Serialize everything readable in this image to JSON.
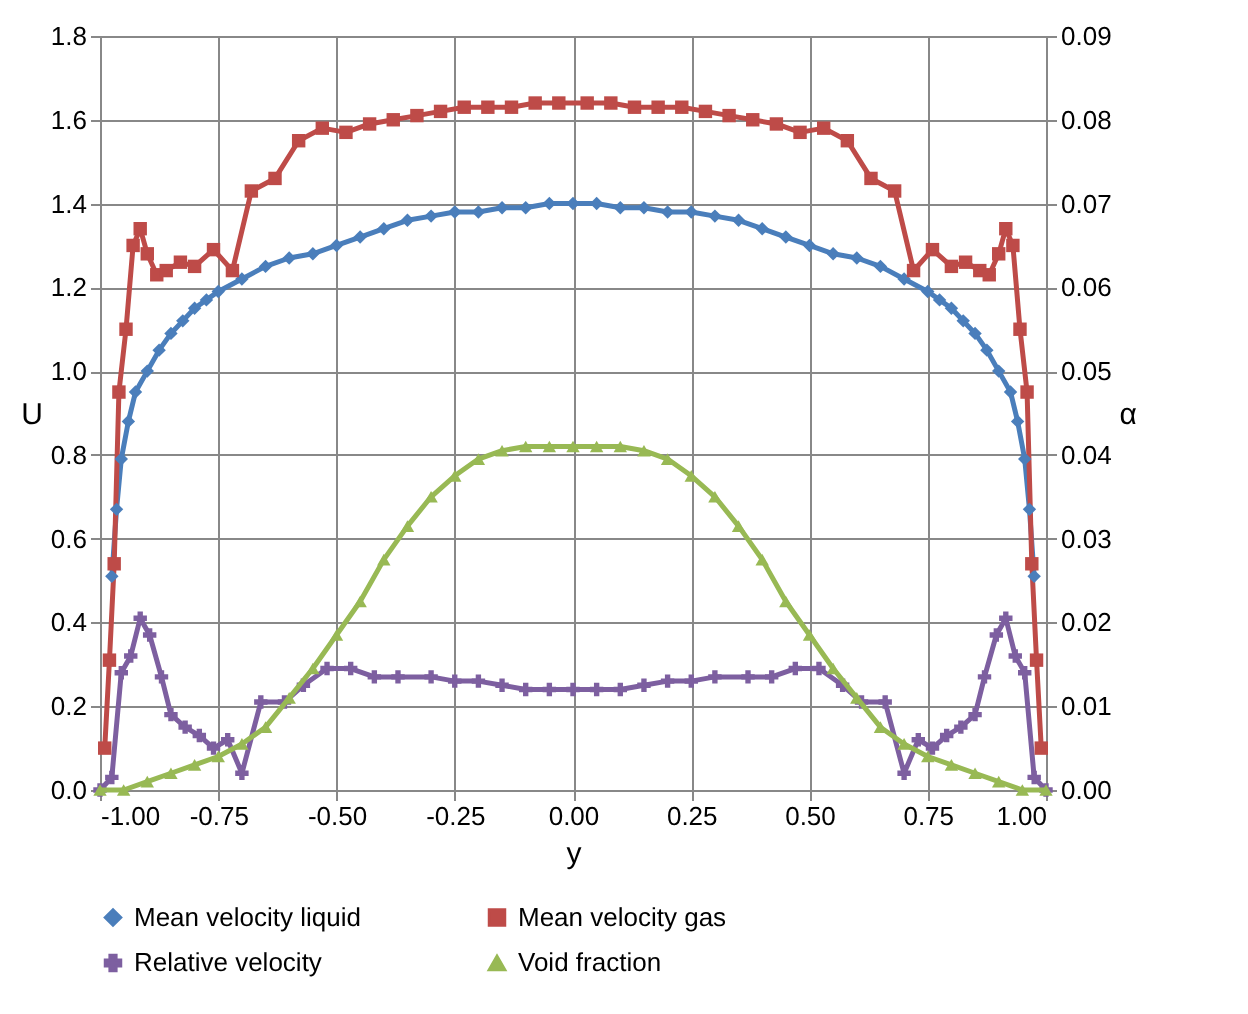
{
  "chart_data": {
    "type": "line",
    "xlabel": "y",
    "ylabel": "U",
    "y2label": "α",
    "xlim": [
      -1,
      1
    ],
    "ylim": [
      0,
      1.8
    ],
    "y2lim": [
      0,
      0.09
    ],
    "xticks": [
      {
        "value": -1,
        "label": "-1.00"
      },
      {
        "value": -0.75,
        "label": "-0.75"
      },
      {
        "value": -0.5,
        "label": "-0.50"
      },
      {
        "value": -0.25,
        "label": "-0.25"
      },
      {
        "value": 0,
        "label": "0.00"
      },
      {
        "value": 0.25,
        "label": "0.25"
      },
      {
        "value": 0.5,
        "label": "0.50"
      },
      {
        "value": 0.75,
        "label": "0.75"
      },
      {
        "value": 1,
        "label": "1.00"
      }
    ],
    "yticks": [
      {
        "value": 0,
        "label": "0.0"
      },
      {
        "value": 0.2,
        "label": "0.2"
      },
      {
        "value": 0.4,
        "label": "0.4"
      },
      {
        "value": 0.6,
        "label": "0.6"
      },
      {
        "value": 0.8,
        "label": "0.8"
      },
      {
        "value": 1,
        "label": "1.0"
      },
      {
        "value": 1.2,
        "label": "1.2"
      },
      {
        "value": 1.4,
        "label": "1.4"
      },
      {
        "value": 1.6,
        "label": "1.6"
      },
      {
        "value": 1.8,
        "label": "1.8"
      }
    ],
    "y2ticks": [
      {
        "value": 0,
        "label": "0.00"
      },
      {
        "value": 0.01,
        "label": "0.01"
      },
      {
        "value": 0.02,
        "label": "0.02"
      },
      {
        "value": 0.03,
        "label": "0.03"
      },
      {
        "value": 0.04,
        "label": "0.04"
      },
      {
        "value": 0.05,
        "label": "0.05"
      },
      {
        "value": 0.06,
        "label": "0.06"
      },
      {
        "value": 0.07,
        "label": "0.07"
      },
      {
        "value": 0.08,
        "label": "0.08"
      },
      {
        "value": 0.09,
        "label": "0.09"
      }
    ],
    "grid": true,
    "legend": "bottom",
    "series": [
      {
        "name": "Mean velocity liquid",
        "color": "#4a7ebb",
        "marker": "diamond",
        "x": [
          -0.975,
          -0.965,
          -0.955,
          -0.94,
          -0.925,
          -0.9,
          -0.875,
          -0.85,
          -0.825,
          -0.8,
          -0.775,
          -0.75,
          -0.7,
          -0.65,
          -0.6,
          -0.55,
          -0.5,
          -0.45,
          -0.4,
          -0.35,
          -0.3,
          -0.25,
          -0.2,
          -0.15,
          -0.1,
          -0.05,
          0,
          0.05,
          0.1,
          0.15,
          0.2,
          0.25,
          0.3,
          0.35,
          0.4,
          0.45,
          0.5,
          0.55,
          0.6,
          0.65,
          0.7,
          0.75,
          0.775,
          0.8,
          0.825,
          0.85,
          0.875,
          0.9,
          0.925,
          0.94,
          0.955,
          0.965,
          0.975
        ],
        "values": [
          0.51,
          0.67,
          0.79,
          0.88,
          0.95,
          1.0,
          1.05,
          1.09,
          1.12,
          1.15,
          1.17,
          1.19,
          1.22,
          1.25,
          1.27,
          1.28,
          1.3,
          1.32,
          1.34,
          1.36,
          1.37,
          1.38,
          1.38,
          1.39,
          1.39,
          1.4,
          1.4,
          1.4,
          1.39,
          1.39,
          1.38,
          1.38,
          1.37,
          1.36,
          1.34,
          1.32,
          1.3,
          1.28,
          1.27,
          1.25,
          1.22,
          1.19,
          1.17,
          1.15,
          1.12,
          1.09,
          1.05,
          1.0,
          0.95,
          0.88,
          0.79,
          0.67,
          0.51
        ]
      },
      {
        "name": "Mean velocity gas",
        "color": "#be4b48",
        "marker": "square",
        "x": [
          -0.99,
          -0.98,
          -0.97,
          -0.96,
          -0.945,
          -0.93,
          -0.915,
          -0.9,
          -0.88,
          -0.86,
          -0.83,
          -0.8,
          -0.76,
          -0.72,
          -0.68,
          -0.63,
          -0.58,
          -0.53,
          -0.48,
          -0.43,
          -0.38,
          -0.33,
          -0.28,
          -0.23,
          -0.18,
          -0.13,
          -0.08,
          -0.03,
          0.03,
          0.08,
          0.13,
          0.18,
          0.23,
          0.28,
          0.33,
          0.38,
          0.43,
          0.48,
          0.53,
          0.58,
          0.63,
          0.68,
          0.72,
          0.76,
          0.8,
          0.83,
          0.86,
          0.88,
          0.9,
          0.915,
          0.93,
          0.945,
          0.96,
          0.97,
          0.98,
          0.99
        ],
        "values": [
          0.1,
          0.31,
          0.54,
          0.95,
          1.1,
          1.3,
          1.34,
          1.28,
          1.23,
          1.24,
          1.26,
          1.25,
          1.29,
          1.24,
          1.43,
          1.46,
          1.55,
          1.58,
          1.57,
          1.59,
          1.6,
          1.61,
          1.62,
          1.63,
          1.63,
          1.63,
          1.64,
          1.64,
          1.64,
          1.64,
          1.63,
          1.63,
          1.63,
          1.62,
          1.61,
          1.6,
          1.59,
          1.57,
          1.58,
          1.55,
          1.46,
          1.43,
          1.24,
          1.29,
          1.25,
          1.26,
          1.24,
          1.23,
          1.28,
          1.34,
          1.3,
          1.1,
          0.95,
          0.54,
          0.31,
          0.1
        ]
      },
      {
        "name": "Relative velocity",
        "color": "#7d5fa0",
        "marker": "cross",
        "x": [
          -1.0,
          -0.975,
          -0.955,
          -0.935,
          -0.915,
          -0.895,
          -0.87,
          -0.85,
          -0.82,
          -0.79,
          -0.76,
          -0.73,
          -0.7,
          -0.66,
          -0.61,
          -0.57,
          -0.52,
          -0.47,
          -0.42,
          -0.37,
          -0.3,
          -0.25,
          -0.2,
          -0.15,
          -0.1,
          -0.05,
          0,
          0.05,
          0.1,
          0.15,
          0.2,
          0.25,
          0.3,
          0.37,
          0.42,
          0.47,
          0.52,
          0.57,
          0.61,
          0.66,
          0.7,
          0.73,
          0.76,
          0.79,
          0.82,
          0.85,
          0.87,
          0.895,
          0.915,
          0.935,
          0.955,
          0.975,
          1.0
        ],
        "values": [
          0.0,
          0.03,
          0.28,
          0.32,
          0.41,
          0.37,
          0.27,
          0.18,
          0.15,
          0.13,
          0.1,
          0.12,
          0.04,
          0.21,
          0.21,
          0.25,
          0.29,
          0.29,
          0.27,
          0.27,
          0.27,
          0.26,
          0.26,
          0.25,
          0.24,
          0.24,
          0.24,
          0.24,
          0.24,
          0.25,
          0.26,
          0.26,
          0.27,
          0.27,
          0.27,
          0.29,
          0.29,
          0.25,
          0.21,
          0.21,
          0.04,
          0.12,
          0.1,
          0.13,
          0.15,
          0.18,
          0.27,
          0.37,
          0.41,
          0.32,
          0.28,
          0.03,
          0.0
        ]
      },
      {
        "name": "Void fraction",
        "color": "#98b954",
        "marker": "triangle",
        "axis": "y2",
        "x": [
          -1.0,
          -0.95,
          -0.9,
          -0.85,
          -0.8,
          -0.75,
          -0.7,
          -0.65,
          -0.6,
          -0.55,
          -0.5,
          -0.45,
          -0.4,
          -0.35,
          -0.3,
          -0.25,
          -0.2,
          -0.15,
          -0.1,
          -0.05,
          0,
          0.05,
          0.1,
          0.15,
          0.2,
          0.25,
          0.3,
          0.35,
          0.4,
          0.45,
          0.5,
          0.55,
          0.6,
          0.65,
          0.7,
          0.75,
          0.8,
          0.85,
          0.9,
          0.95,
          1.0
        ],
        "values": [
          0.0,
          0.0,
          0.001,
          0.002,
          0.003,
          0.004,
          0.0055,
          0.0075,
          0.011,
          0.0145,
          0.0185,
          0.0225,
          0.0275,
          0.0315,
          0.035,
          0.0375,
          0.0395,
          0.0405,
          0.041,
          0.041,
          0.041,
          0.041,
          0.041,
          0.0405,
          0.0395,
          0.0375,
          0.035,
          0.0315,
          0.0275,
          0.0225,
          0.0185,
          0.0145,
          0.011,
          0.0075,
          0.0055,
          0.004,
          0.003,
          0.002,
          0.001,
          0.0,
          0.0
        ]
      }
    ]
  }
}
